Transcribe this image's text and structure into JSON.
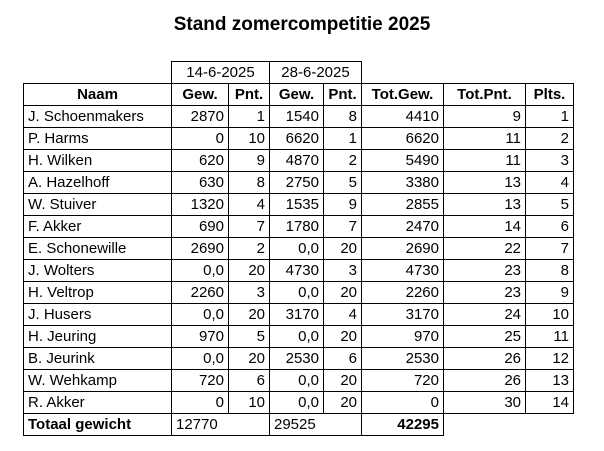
{
  "title": "Stand zomercompetitie 2025",
  "dates": [
    "14-6-2025",
    "28-6-2025"
  ],
  "headers": [
    "Naam",
    "Gew.",
    "Pnt.",
    "Gew.",
    "Pnt.",
    "Tot.Gew.",
    "Tot.Pnt.",
    "Plts."
  ],
  "rows": [
    [
      "J. Schoenmakers",
      "2870",
      "1",
      "1540",
      "8",
      "4410",
      "9",
      "1"
    ],
    [
      "P. Harms",
      "0",
      "10",
      "6620",
      "1",
      "6620",
      "11",
      "2"
    ],
    [
      "H. Wilken",
      "620",
      "9",
      "4870",
      "2",
      "5490",
      "11",
      "3"
    ],
    [
      "A. Hazelhoff",
      "630",
      "8",
      "2750",
      "5",
      "3380",
      "13",
      "4"
    ],
    [
      "W. Stuiver",
      "1320",
      "4",
      "1535",
      "9",
      "2855",
      "13",
      "5"
    ],
    [
      "F. Akker",
      "690",
      "7",
      "1780",
      "7",
      "2470",
      "14",
      "6"
    ],
    [
      "E. Schonewille",
      "2690",
      "2",
      "0,0",
      "20",
      "2690",
      "22",
      "7"
    ],
    [
      "J. Wolters",
      "0,0",
      "20",
      "4730",
      "3",
      "4730",
      "23",
      "8"
    ],
    [
      "H. Veltrop",
      "2260",
      "3",
      "0,0",
      "20",
      "2260",
      "23",
      "9"
    ],
    [
      "J. Husers",
      "0,0",
      "20",
      "3170",
      "4",
      "3170",
      "24",
      "10"
    ],
    [
      "H. Jeuring",
      "970",
      "5",
      "0,0",
      "20",
      "970",
      "25",
      "11"
    ],
    [
      "B. Jeurink",
      "0,0",
      "20",
      "2530",
      "6",
      "2530",
      "26",
      "12"
    ],
    [
      "W. Wehkamp",
      "720",
      "6",
      "0,0",
      "20",
      "720",
      "26",
      "13"
    ],
    [
      "R. Akker",
      "0",
      "10",
      "0,0",
      "20",
      "0",
      "30",
      "14"
    ]
  ],
  "total": {
    "label": "Totaal gewicht",
    "values": [
      "12770",
      "29525",
      "42295"
    ]
  }
}
